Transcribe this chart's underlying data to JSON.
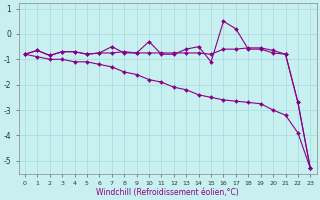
{
  "xlabel": "Windchill (Refroidissement éolien,°C)",
  "bg_color": "#c8f0f0",
  "line_color": "#880088",
  "grid_color": "#a8dede",
  "x_values": [
    0,
    1,
    2,
    3,
    4,
    5,
    6,
    7,
    8,
    9,
    10,
    11,
    12,
    13,
    14,
    15,
    16,
    17,
    18,
    19,
    20,
    21,
    22,
    23
  ],
  "line1": [
    -0.8,
    -0.65,
    -0.85,
    -0.7,
    -0.7,
    -0.8,
    -0.75,
    -0.5,
    -0.75,
    -0.75,
    -0.3,
    -0.8,
    -0.8,
    -0.6,
    -0.5,
    -1.1,
    0.5,
    0.2,
    -0.6,
    -0.6,
    -0.75,
    -0.8,
    -2.7,
    -5.3
  ],
  "line2": [
    -0.8,
    -0.65,
    -0.85,
    -0.7,
    -0.7,
    -0.8,
    -0.75,
    -0.75,
    -0.7,
    -0.75,
    -0.75,
    -0.75,
    -0.75,
    -0.75,
    -0.75,
    -0.8,
    -0.6,
    -0.6,
    -0.55,
    -0.55,
    -0.65,
    -0.8,
    -2.7,
    -5.3
  ],
  "line3": [
    -0.8,
    -0.9,
    -1.0,
    -1.0,
    -1.1,
    -1.1,
    -1.2,
    -1.3,
    -1.5,
    -1.6,
    -1.8,
    -1.9,
    -2.1,
    -2.2,
    -2.4,
    -2.5,
    -2.6,
    -2.65,
    -2.7,
    -2.75,
    -3.0,
    -3.2,
    -3.9,
    -5.3
  ],
  "ylim": [
    -5.5,
    1.2
  ],
  "xlim": [
    -0.5,
    23.5
  ],
  "yticks": [
    1,
    0,
    -1,
    -2,
    -3,
    -4,
    -5
  ],
  "xticks": [
    0,
    1,
    2,
    3,
    4,
    5,
    6,
    7,
    8,
    9,
    10,
    11,
    12,
    13,
    14,
    15,
    16,
    17,
    18,
    19,
    20,
    21,
    22,
    23
  ]
}
